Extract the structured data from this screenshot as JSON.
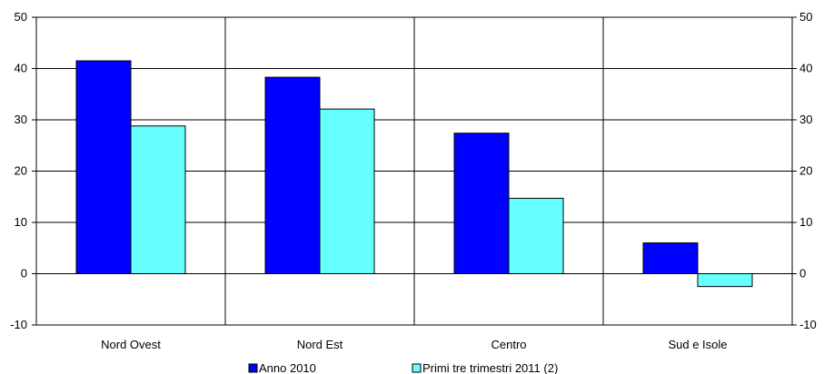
{
  "chart_data": {
    "type": "bar",
    "categories": [
      "Nord Ovest",
      "Nord Est",
      "Centro",
      "Sud e Isole"
    ],
    "series": [
      {
        "name": "Anno 2010",
        "values": [
          41.5,
          38.3,
          27.4,
          6.0
        ],
        "color": "#0000FF"
      },
      {
        "name": "Primi tre trimestri 2011 (2)",
        "values": [
          28.8,
          32.1,
          14.7,
          -2.5
        ],
        "color": "#66FFFF"
      }
    ],
    "ylim": [
      -10,
      50
    ],
    "yticks": [
      "-10",
      "0",
      "10",
      "20",
      "30",
      "40",
      "50"
    ],
    "secondary_yticks": [
      "-10",
      "0",
      "10",
      "20",
      "30",
      "40",
      "50"
    ],
    "grid": true,
    "legend": "bottom"
  }
}
